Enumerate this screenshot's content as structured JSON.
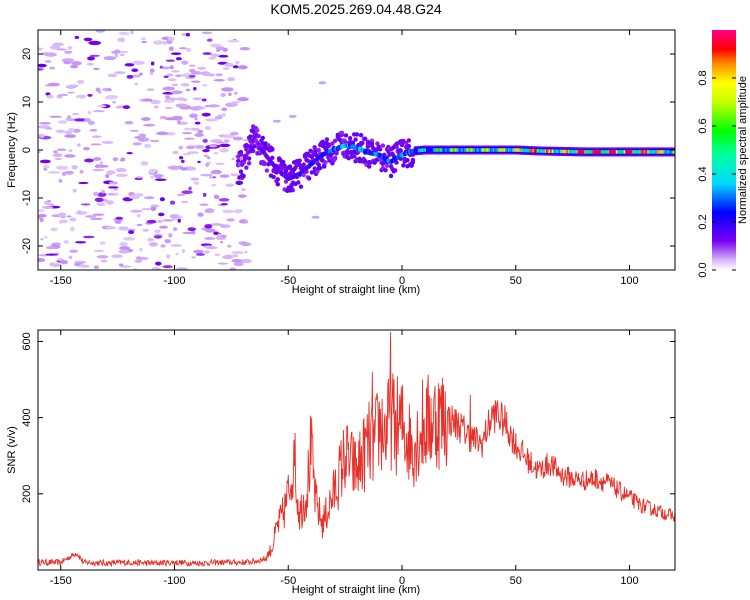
{
  "title": "KOM5.2025.269.04.48.G24",
  "chart_data": [
    {
      "type": "heatmap",
      "name": "spectrogram",
      "xlabel": "Height of straight line (km)",
      "ylabel": "Frequency (Hz)",
      "xlim": [
        -160,
        120
      ],
      "ylim": [
        -25,
        25
      ],
      "xticks": [
        -150,
        -100,
        -50,
        0,
        50,
        100
      ],
      "yticks": [
        -20,
        -10,
        0,
        10,
        20
      ],
      "colorbar": {
        "label": "Normalized spectral amplitude",
        "range": [
          0.0,
          1.0
        ],
        "ticks": [
          0.0,
          0.2,
          0.4,
          0.6,
          0.8
        ],
        "tick_labels": [
          "0.0",
          "0.2",
          "0.4",
          "0.6",
          "0.8"
        ]
      },
      "signal_track": [
        {
          "x": -70,
          "freq": -3.0,
          "amp": 0.12
        },
        {
          "x": -65,
          "freq": 2.5,
          "amp": 0.15
        },
        {
          "x": -60,
          "freq": -1.0,
          "amp": 0.14
        },
        {
          "x": -55,
          "freq": -4.0,
          "amp": 0.16
        },
        {
          "x": -50,
          "freq": -6.0,
          "amp": 0.15
        },
        {
          "x": -45,
          "freq": -5.0,
          "amp": 0.18
        },
        {
          "x": -40,
          "freq": -3.0,
          "amp": 0.2
        },
        {
          "x": -35,
          "freq": -1.0,
          "amp": 0.22
        },
        {
          "x": -30,
          "freq": 0.0,
          "amp": 0.3
        },
        {
          "x": -25,
          "freq": 1.0,
          "amp": 0.35
        },
        {
          "x": -20,
          "freq": 0.5,
          "amp": 0.35
        },
        {
          "x": -15,
          "freq": -0.5,
          "amp": 0.25
        },
        {
          "x": -10,
          "freq": -1.0,
          "amp": 0.3
        },
        {
          "x": -5,
          "freq": -2.5,
          "amp": 0.28
        },
        {
          "x": 0,
          "freq": -1.0,
          "amp": 0.3
        },
        {
          "x": 5,
          "freq": -0.2,
          "amp": 0.35
        },
        {
          "x": 10,
          "freq": 0.0,
          "amp": 0.4
        },
        {
          "x": 20,
          "freq": 0.0,
          "amp": 0.6
        },
        {
          "x": 30,
          "freq": 0.0,
          "amp": 0.62
        },
        {
          "x": 40,
          "freq": 0.0,
          "amp": 0.65
        },
        {
          "x": 50,
          "freq": 0.0,
          "amp": 0.7
        },
        {
          "x": 60,
          "freq": -0.2,
          "amp": 0.85
        },
        {
          "x": 70,
          "freq": -0.3,
          "amp": 0.7
        },
        {
          "x": 80,
          "freq": -0.4,
          "amp": 0.95
        },
        {
          "x": 90,
          "freq": -0.4,
          "amp": 0.95
        },
        {
          "x": 100,
          "freq": -0.4,
          "amp": 0.92
        },
        {
          "x": 110,
          "freq": -0.4,
          "amp": 0.8
        },
        {
          "x": 120,
          "freq": -0.4,
          "amp": 0.6
        }
      ]
    },
    {
      "type": "line",
      "name": "snr",
      "xlabel": "Height of straight line (km)",
      "ylabel": "SNR (v/v)",
      "xlim": [
        -160,
        120
      ],
      "ylim": [
        0,
        630
      ],
      "xticks": [
        -150,
        -100,
        -50,
        0,
        50,
        100
      ],
      "yticks": [
        200,
        400,
        600
      ],
      "series": [
        {
          "name": "SNR",
          "color": "#e8302a",
          "x": [
            -160,
            -150,
            -143,
            -140,
            -130,
            -120,
            -110,
            -100,
            -90,
            -80,
            -70,
            -65,
            -60,
            -57,
            -55,
            -52,
            -50,
            -48,
            -45,
            -42,
            -40,
            -38,
            -35,
            -30,
            -25,
            -20,
            -15,
            -12,
            -10,
            -7,
            -5,
            -3,
            0,
            3,
            5,
            8,
            10,
            15,
            20,
            25,
            30,
            35,
            40,
            45,
            50,
            55,
            60,
            65,
            70,
            75,
            80,
            85,
            90,
            95,
            100,
            105,
            110,
            115,
            120
          ],
          "y": [
            20,
            20,
            45,
            20,
            18,
            20,
            18,
            20,
            18,
            20,
            20,
            22,
            30,
            60,
            110,
            150,
            200,
            280,
            150,
            200,
            320,
            180,
            120,
            200,
            300,
            260,
            330,
            330,
            380,
            360,
            400,
            380,
            380,
            340,
            330,
            360,
            380,
            400,
            400,
            380,
            350,
            330,
            410,
            390,
            330,
            290,
            260,
            280,
            250,
            240,
            235,
            240,
            230,
            210,
            190,
            170,
            160,
            150,
            140
          ]
        }
      ],
      "spikes": [
        {
          "x": -47,
          "y": 360
        },
        {
          "x": -13,
          "y": 520
        },
        {
          "x": -5,
          "y": 625
        },
        {
          "x": 9,
          "y": 500
        },
        {
          "x": 30,
          "y": 460
        },
        {
          "x": 42,
          "y": 445
        }
      ]
    }
  ]
}
